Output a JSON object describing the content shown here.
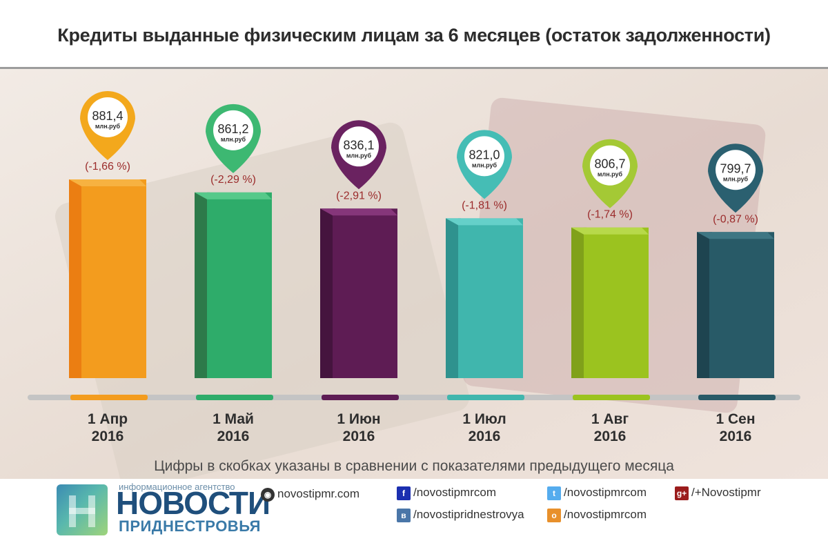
{
  "title": "Кредиты выданные физическим лицам за 6 месяцев (остаток задолженности)",
  "note": "Цифры в скобках указаны в сравнении с показателями предыдущего месяца",
  "unit_label": "млн.руб",
  "chart_data": {
    "type": "bar",
    "title": "Кредиты выданные физическим лицам за 6 месяцев (остаток задолженности)",
    "categories": [
      {
        "line1": "1 Апр",
        "line2": "2016"
      },
      {
        "line1": "1 Май",
        "line2": "2016"
      },
      {
        "line1": "1 Июн",
        "line2": "2016"
      },
      {
        "line1": "1 Июл",
        "line2": "2016"
      },
      {
        "line1": "1 Авг",
        "line2": "2016"
      },
      {
        "line1": "1 Сен",
        "line2": "2016"
      }
    ],
    "values": [
      881.4,
      861.2,
      836.1,
      821.0,
      806.7,
      799.7
    ],
    "value_labels": [
      "881,4",
      "861,2",
      "836,1",
      "821,0",
      "806,7",
      "799,7"
    ],
    "change_labels": [
      "(-1,66 %)",
      "(-2,29 %)",
      "(-2,91 %)",
      "(-1,81 %)",
      "(-1,74 %)",
      "(-0,87 %)"
    ],
    "colors": [
      "#f39c1e",
      "#2eac6a",
      "#5e1c54",
      "#40b6ad",
      "#9bc31f",
      "#285a67"
    ],
    "side_colors": [
      "#eb7e12",
      "#2d7a4a",
      "#45143e",
      "#2f928e",
      "#80a11a",
      "#1e4450"
    ],
    "top_colors": [
      "#f7b241",
      "#56c98a",
      "#86367a",
      "#65d0c9",
      "#b7d94a",
      "#3e7683"
    ],
    "pin_colors": [
      "#f3a81c",
      "#3db872",
      "#6a2260",
      "#45bdb5",
      "#a4c935",
      "#2b6070"
    ],
    "change_color": "#9b2b2b",
    "ylim": [
      0,
      881.4
    ]
  },
  "footer": {
    "logo_agency": "информационное агентство",
    "logo_main": "НОВОСТИ",
    "logo_sub": "ПРИДНЕСТРОВЬЯ",
    "site": "novostipmr.com",
    "facebook": "/novostipmrcom",
    "vk": "/novostipridnestrovya",
    "twitter": "/novostipmrcom",
    "odnoklassniki": "/novostipmrcom",
    "googleplus": "/+Novostipmr"
  }
}
